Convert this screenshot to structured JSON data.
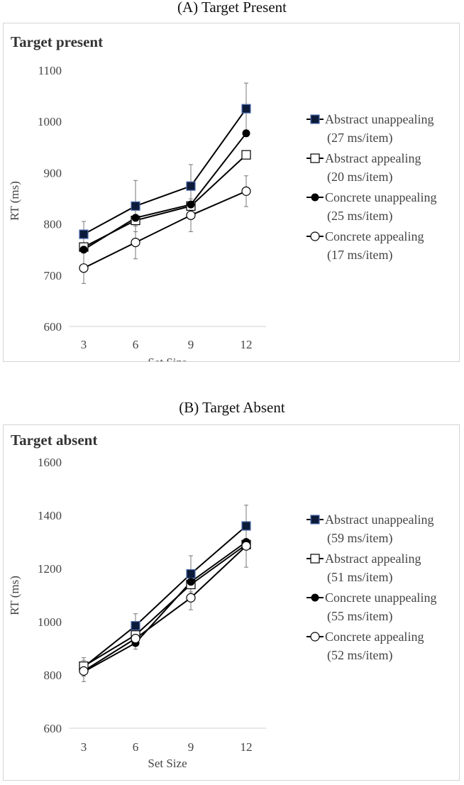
{
  "figure": {
    "caption_a": "(A) Target Present",
    "caption_b": "(B) Target Absent"
  },
  "chart_data": [
    {
      "type": "line",
      "title": "Target present",
      "xlabel": "Set Size",
      "ylabel": "RT (ms)",
      "x": [
        3,
        6,
        9,
        12
      ],
      "categories": [
        "3",
        "6",
        "9",
        "12"
      ],
      "ylim": [
        600,
        1100
      ],
      "yticks": [
        600,
        700,
        800,
        900,
        1000,
        1100
      ],
      "legend_position": "right",
      "series": [
        {
          "name": "Abstract unappealing",
          "rate": "(27 ms/item)",
          "marker": "filled-square",
          "values": [
            780,
            835,
            874,
            1025
          ],
          "errors": [
            25,
            50,
            42,
            50
          ]
        },
        {
          "name": "Abstract appealing",
          "rate": "(20 ms/item)",
          "marker": "open-square",
          "values": [
            755,
            807,
            835,
            935
          ],
          "errors": [
            0,
            0,
            0,
            0
          ]
        },
        {
          "name": "Concrete unappealing",
          "rate": "(25 ms/item)",
          "marker": "filled-circle",
          "values": [
            750,
            812,
            838,
            977
          ],
          "errors": [
            0,
            0,
            0,
            0
          ]
        },
        {
          "name": "Concrete appealing",
          "rate": "(17 ms/item)",
          "marker": "open-circle",
          "values": [
            714,
            764,
            817,
            864
          ],
          "errors": [
            30,
            32,
            32,
            30
          ]
        }
      ]
    },
    {
      "type": "line",
      "title": "Target absent",
      "xlabel": "Set Size",
      "ylabel": "RT (ms)",
      "x": [
        3,
        6,
        9,
        12
      ],
      "categories": [
        "3",
        "6",
        "9",
        "12"
      ],
      "ylim": [
        600,
        1600
      ],
      "yticks": [
        600,
        800,
        1000,
        1200,
        1400,
        1600
      ],
      "legend_position": "right",
      "series": [
        {
          "name": "Abstract unappealing",
          "rate": "(59 ms/item)",
          "marker": "filled-square",
          "values": [
            830,
            985,
            1180,
            1360
          ],
          "errors": [
            35,
            45,
            68,
            78
          ]
        },
        {
          "name": "Abstract appealing",
          "rate": "(51 ms/item)",
          "marker": "open-square",
          "values": [
            833,
            950,
            1140,
            1290
          ],
          "errors": [
            0,
            0,
            0,
            0
          ]
        },
        {
          "name": "Concrete unappealing",
          "rate": "(55 ms/item)",
          "marker": "filled-circle",
          "values": [
            812,
            920,
            1150,
            1300
          ],
          "errors": [
            0,
            0,
            0,
            0
          ]
        },
        {
          "name": "Concrete appealing",
          "rate": "(52 ms/item)",
          "marker": "open-circle",
          "values": [
            815,
            937,
            1090,
            1285
          ],
          "errors": [
            40,
            40,
            45,
            80
          ]
        }
      ]
    }
  ]
}
